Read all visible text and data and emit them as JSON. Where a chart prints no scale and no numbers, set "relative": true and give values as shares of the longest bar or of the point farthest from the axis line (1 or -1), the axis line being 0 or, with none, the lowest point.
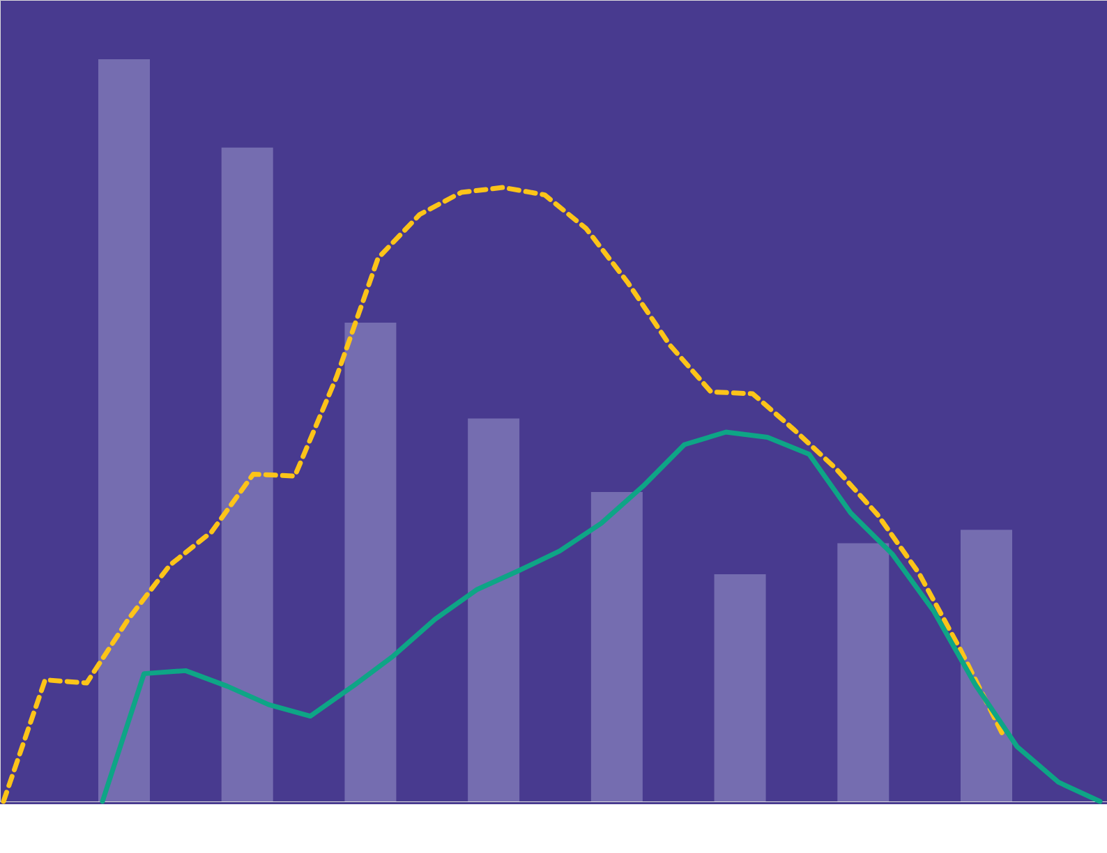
{
  "chart_data": [
    {
      "type": "bar",
      "relative": true,
      "tick_labels": false,
      "color": "#756db0",
      "categories": [
        null,
        null,
        null,
        null,
        null,
        null,
        null,
        null
      ],
      "values": [
        1.0,
        0.881,
        0.645,
        0.516,
        0.417,
        0.306,
        0.348,
        0.366
      ]
    },
    {
      "type": "line",
      "relative": true,
      "tick_labels": false,
      "color": "#fcc419",
      "line_style": "dashed",
      "categories": [
        null,
        null,
        null,
        null,
        null,
        null,
        null,
        null,
        null,
        null,
        null,
        null,
        null,
        null,
        null,
        null,
        null,
        null,
        null,
        null,
        null,
        null,
        null,
        null,
        null
      ],
      "values": [
        0,
        0.198,
        0.193,
        0.297,
        0.385,
        0.439,
        0.533,
        0.53,
        0.691,
        0.885,
        0.956,
        0.992,
        1.0,
        0.988,
        0.933,
        0.845,
        0.744,
        0.667,
        0.664,
        0.605,
        0.542,
        0.467,
        0.371,
        0.246,
        0.11
      ]
    },
    {
      "type": "line",
      "relative": true,
      "tick_labels": false,
      "color": "#0ea586",
      "line_style": "solid",
      "categories": [
        null,
        null,
        null,
        null,
        null,
        null,
        null,
        null,
        null,
        null,
        null,
        null,
        null,
        null,
        null,
        null,
        null,
        null,
        null,
        null,
        null,
        null,
        null,
        null,
        null
      ],
      "values": [
        0,
        0.346,
        0.354,
        0.312,
        0.262,
        0.231,
        0.31,
        0.394,
        0.493,
        0.573,
        0.624,
        0.678,
        0.753,
        0.853,
        0.966,
        1.0,
        0.986,
        0.94,
        0.781,
        0.67,
        0.515,
        0.316,
        0.149,
        0.052,
        0
      ]
    }
  ]
}
